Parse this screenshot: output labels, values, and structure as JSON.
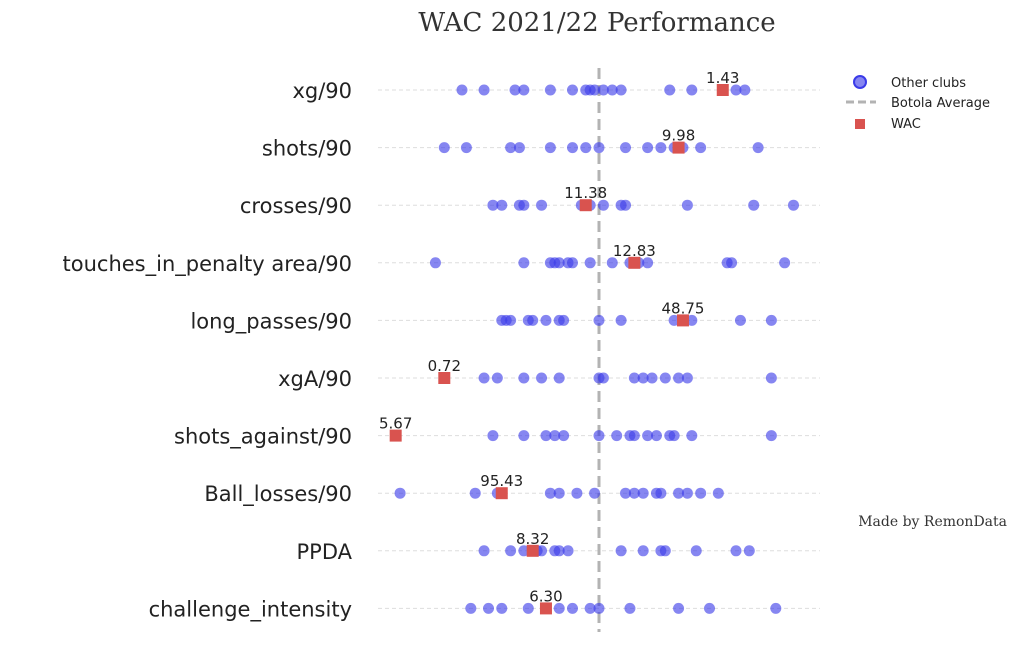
{
  "chart_data": {
    "type": "scatter",
    "title": "WAC 2021/22 Performance",
    "credit": "Made by RemonData",
    "legend": {
      "placement": "top-right",
      "entries": {
        "others": "Other clubs",
        "average": "Botola Average",
        "team": "WAC"
      }
    },
    "colors": {
      "others": "#3b3be8",
      "team": "#d9534f",
      "average": "#b3b3b3",
      "grid": "#dddddd"
    },
    "x_scale": "normalized",
    "xlim": [
      0,
      1
    ],
    "average_x": 0.5,
    "grid": true,
    "metrics": [
      {
        "name": "xg/90",
        "team_value": 0.78,
        "team_label": "1.43",
        "others": [
          0.19,
          0.24,
          0.31,
          0.33,
          0.39,
          0.44,
          0.47,
          0.48,
          0.49,
          0.51,
          0.53,
          0.55,
          0.66,
          0.71,
          0.81,
          0.83
        ]
      },
      {
        "name": "shots/90",
        "team_value": 0.68,
        "team_label": "9.98",
        "others": [
          0.15,
          0.2,
          0.3,
          0.32,
          0.39,
          0.44,
          0.47,
          0.5,
          0.56,
          0.61,
          0.64,
          0.67,
          0.69,
          0.73,
          0.86
        ]
      },
      {
        "name": "crosses/90",
        "team_value": 0.47,
        "team_label": "11.38",
        "others": [
          0.26,
          0.28,
          0.32,
          0.33,
          0.37,
          0.46,
          0.48,
          0.51,
          0.55,
          0.56,
          0.7,
          0.85,
          0.94
        ]
      },
      {
        "name": "touches_in_penalty area/90",
        "team_value": 0.58,
        "team_label": "12.83",
        "others": [
          0.13,
          0.33,
          0.39,
          0.4,
          0.41,
          0.43,
          0.44,
          0.48,
          0.53,
          0.57,
          0.59,
          0.61,
          0.79,
          0.8,
          0.92
        ]
      },
      {
        "name": "long_passes/90",
        "team_value": 0.69,
        "team_label": "48.75",
        "others": [
          0.28,
          0.29,
          0.3,
          0.34,
          0.35,
          0.38,
          0.41,
          0.42,
          0.5,
          0.55,
          0.67,
          0.71,
          0.82,
          0.89
        ]
      },
      {
        "name": "xgA/90",
        "team_value": 0.15,
        "team_label": "0.72",
        "others": [
          0.24,
          0.27,
          0.33,
          0.37,
          0.41,
          0.5,
          0.51,
          0.58,
          0.6,
          0.62,
          0.65,
          0.68,
          0.7,
          0.89
        ]
      },
      {
        "name": "shots_against/90",
        "team_value": 0.04,
        "team_label": "5.67",
        "others": [
          0.26,
          0.33,
          0.38,
          0.4,
          0.42,
          0.5,
          0.54,
          0.57,
          0.58,
          0.61,
          0.63,
          0.66,
          0.67,
          0.71,
          0.89
        ]
      },
      {
        "name": "Ball_losses/90",
        "team_value": 0.28,
        "team_label": "95.43",
        "others": [
          0.05,
          0.22,
          0.27,
          0.39,
          0.41,
          0.45,
          0.49,
          0.56,
          0.58,
          0.6,
          0.63,
          0.64,
          0.68,
          0.7,
          0.73,
          0.77
        ]
      },
      {
        "name": "PPDA",
        "team_value": 0.35,
        "team_label": "8.32",
        "others": [
          0.24,
          0.3,
          0.33,
          0.36,
          0.37,
          0.4,
          0.41,
          0.43,
          0.55,
          0.6,
          0.64,
          0.65,
          0.72,
          0.81,
          0.84
        ]
      },
      {
        "name": "challenge_intensity",
        "team_value": 0.38,
        "team_label": "6.30",
        "others": [
          0.21,
          0.25,
          0.28,
          0.34,
          0.41,
          0.44,
          0.48,
          0.5,
          0.57,
          0.68,
          0.75,
          0.9
        ]
      }
    ]
  }
}
